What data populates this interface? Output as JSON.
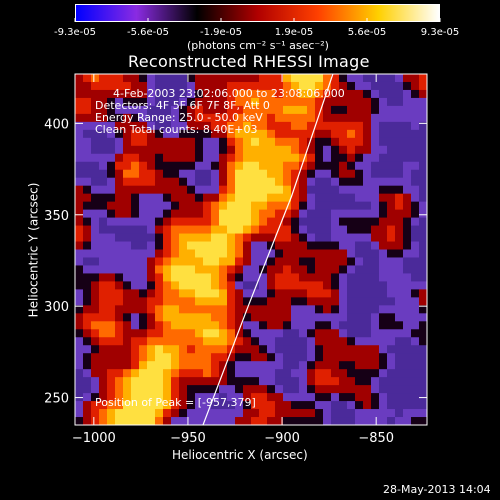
{
  "colorbar": {
    "tick_labels": [
      "-9.3e-05",
      "-5.6e-05",
      "-1.9e-05",
      "1.9e-05",
      "5.6e-05",
      "9.3e-05"
    ],
    "units_label": "(photons cm⁻² s⁻¹ asec⁻²)",
    "range": [
      -9.3e-05,
      9.3e-05
    ],
    "colors": [
      "#0000ff",
      "#8a2be2",
      "#000000",
      "#b00000",
      "#ff4000",
      "#ffd000",
      "#ffffff"
    ]
  },
  "title": "Reconstructed RHESSI Image",
  "info": {
    "line1": "4-Feb-2003 23:02:06.000 to 23:08:06.000",
    "line2": "Detectors: 4F 5F 6F 7F 8F, Att 0",
    "line3": "Energy Range: 25.0 - 50.0 keV",
    "line4": "Clean    Total counts: 8.40E+03",
    "peak": "Position of Peak = [-957,379]"
  },
  "footer": {
    "timestamp": "28-May-2013 14:04"
  },
  "chart_data": {
    "type": "heatmap",
    "title": "Reconstructed RHESSI Image",
    "xlabel": "Heliocentric X (arcsec)",
    "ylabel": "Heliocentric Y (arcsec)",
    "xlim": [
      -1010,
      -823
    ],
    "ylim": [
      235,
      427
    ],
    "xticks": [
      -1000,
      -950,
      -900,
      -850
    ],
    "xtick_labels": [
      "−1000",
      "−950",
      "−900",
      "−850"
    ],
    "yticks": [
      250,
      300,
      350,
      400
    ],
    "ytick_labels": [
      "250",
      "300",
      "350",
      "400"
    ],
    "limb_line": [
      {
        "x": -942,
        "y": 235
      },
      {
        "x": -918,
        "y": 300
      },
      {
        "x": -895,
        "y": 360
      },
      {
        "x": -873,
        "y": 427
      }
    ],
    "peak": {
      "x": -957,
      "y": 379
    },
    "colors": {
      "hot_ridge": "#ffd400",
      "warm": "#ff6a00",
      "mid": "#c81400",
      "dark": "#1a001a",
      "neg": "#5a2aa8"
    }
  }
}
